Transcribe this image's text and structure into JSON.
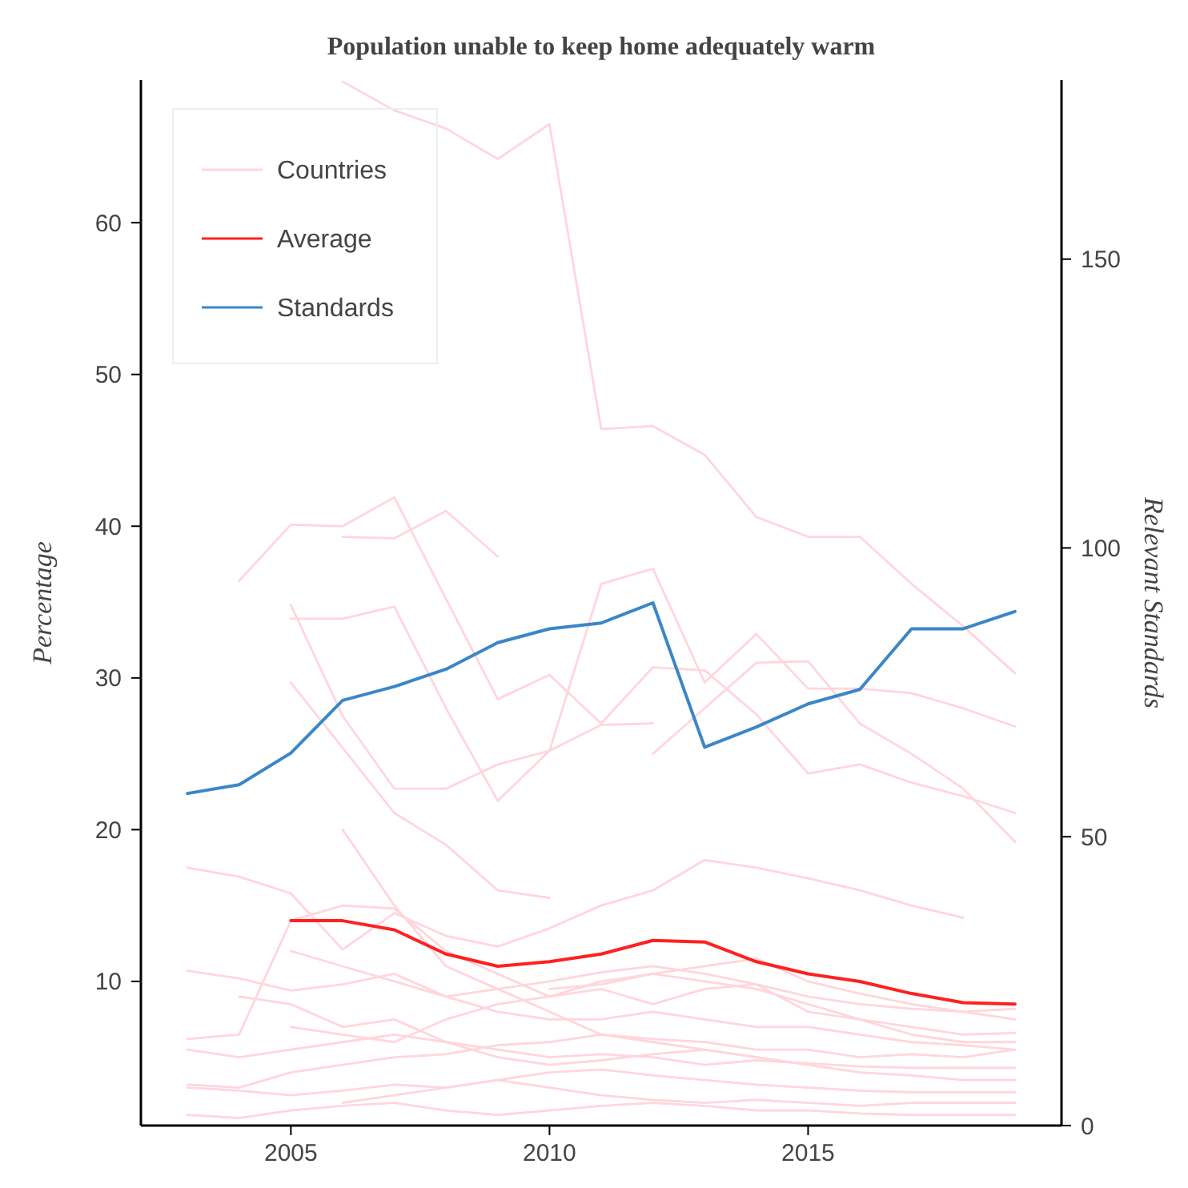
{
  "chart_data": {
    "type": "line",
    "title": "Population unable to keep home adequately warm",
    "ylabel": "Percentage",
    "y2label": "Relevant Standards",
    "xlim": [
      2002.1,
      2019.9
    ],
    "xticks": [
      2005,
      2010,
      2015
    ],
    "ylim": [
      0.5,
      69.4
    ],
    "yticks": [
      10,
      20,
      30,
      40,
      50,
      60
    ],
    "y2lim": [
      0,
      181
    ],
    "y2ticks": [
      0,
      50,
      100,
      150
    ],
    "legend": "top left",
    "grid": false,
    "series": [
      {
        "name": "Countries",
        "color": "#ffd6dc",
        "x": [
          2006,
          2007,
          2008,
          2009,
          2010,
          2011,
          2012,
          2013,
          2014,
          2015,
          2016,
          2017,
          2018,
          2019
        ],
        "values": [
          69.3,
          67.4,
          66.2,
          64.2,
          66.5,
          46.4,
          46.6,
          44.7,
          40.6,
          39.3,
          39.3,
          36.2,
          33.4,
          30.3
        ]
      },
      {
        "color": "#ffd6dc",
        "x": [
          2004,
          2005,
          2006,
          2007,
          2008,
          2009,
          2010,
          2011,
          2012,
          2013,
          2014,
          2015,
          2016
        ],
        "values": [
          36.4,
          40.1,
          40.0,
          41.9,
          35.2,
          28.6,
          30.2,
          27.0,
          30.7,
          30.5,
          27.6,
          23.7,
          24.3
        ]
      },
      {
        "color": "#ffd6dc",
        "x": [
          2006,
          2007,
          2008,
          2009
        ],
        "values": [
          39.3,
          39.2,
          41.0,
          38.0
        ]
      },
      {
        "color": "#ffd6dc",
        "x": [
          2005,
          2006,
          2007,
          2008,
          2009,
          2010,
          2011,
          2012,
          2013,
          2014,
          2015,
          2016,
          2017,
          2018,
          2019
        ],
        "values": [
          33.9,
          33.9,
          34.7,
          28.0,
          21.9,
          25.2,
          36.2,
          37.2,
          29.7,
          32.9,
          29.3,
          29.3,
          29.0,
          28.0,
          26.8
        ]
      },
      {
        "color": "#ffd6dc",
        "x": [
          2005,
          2006,
          2007,
          2008,
          2009,
          2010,
          2011,
          2012
        ],
        "values": [
          34.8,
          27.5,
          22.7,
          22.7,
          24.3,
          25.2,
          26.9,
          27.0
        ]
      },
      {
        "color": "#ffd6dc",
        "x": [
          2005,
          2006,
          2007,
          2008,
          2009,
          2010
        ],
        "values": [
          29.7,
          25.4,
          21.1,
          19.0,
          16.0,
          15.5
        ]
      },
      {
        "color": "#ffd6dc",
        "x": [
          2012,
          2013,
          2014,
          2015,
          2016,
          2017,
          2018,
          2019
        ],
        "values": [
          25.0,
          28.0,
          31.0,
          31.1,
          27.0,
          25.0,
          22.7,
          19.2
        ]
      },
      {
        "color": "#ffd6dc",
        "x": [
          2016,
          2017,
          2018,
          2019
        ],
        "values": [
          24.3,
          23.1,
          22.2,
          21.1
        ]
      },
      {
        "color": "#ffd6dc",
        "x": [
          2003,
          2004,
          2005,
          2006,
          2007,
          2008,
          2009,
          2010,
          2011,
          2012,
          2013,
          2014,
          2015,
          2016,
          2017,
          2018
        ],
        "values": [
          17.5,
          16.9,
          15.8,
          12.1,
          14.5,
          13.0,
          12.3,
          13.5,
          15.0,
          16.0,
          18.0,
          17.5,
          16.8,
          16.0,
          15.0,
          14.2
        ]
      },
      {
        "color": "#ffd6dc",
        "x": [
          2003,
          2004,
          2005,
          2006,
          2007,
          2008,
          2009,
          2010,
          2011,
          2012,
          2013,
          2014,
          2015,
          2016,
          2017,
          2018,
          2019
        ],
        "values": [
          10.7,
          10.2,
          9.4,
          9.8,
          10.5,
          9.0,
          9.5,
          10.0,
          10.6,
          11.0,
          10.5,
          9.8,
          9.0,
          8.5,
          8.2,
          8.0,
          8.2
        ]
      },
      {
        "color": "#ffd6dc",
        "x": [
          2003,
          2004,
          2005,
          2006,
          2007,
          2008,
          2009,
          2010,
          2011,
          2012,
          2013,
          2014,
          2015,
          2016,
          2017,
          2018,
          2019
        ],
        "values": [
          6.2,
          6.5,
          14.0,
          15.0,
          14.8,
          12.0,
          10.5,
          9.0,
          9.5,
          8.5,
          9.5,
          9.8,
          8.0,
          7.5,
          7.0,
          6.5,
          6.6
        ]
      },
      {
        "color": "#ffd6dc",
        "x": [
          2003,
          2004,
          2005,
          2006,
          2007,
          2008,
          2009,
          2010,
          2011,
          2012,
          2013,
          2014,
          2015,
          2016,
          2017,
          2018,
          2019
        ],
        "values": [
          3.2,
          3.0,
          4.0,
          4.5,
          5.0,
          5.2,
          5.8,
          6.0,
          6.5,
          6.2,
          6.0,
          5.5,
          5.5,
          5.0,
          5.2,
          5.0,
          5.5
        ]
      },
      {
        "color": "#ffd6dc",
        "x": [
          2003,
          2004,
          2005,
          2006,
          2007,
          2008,
          2009,
          2010,
          2011,
          2012,
          2013,
          2014,
          2015,
          2016,
          2017,
          2018,
          2019
        ],
        "values": [
          1.2,
          1.0,
          1.5,
          1.8,
          2.0,
          1.5,
          1.2,
          1.5,
          1.8,
          2.0,
          1.8,
          1.5,
          1.5,
          1.3,
          1.2,
          1.2,
          1.2
        ]
      },
      {
        "color": "#ffd6dc",
        "x": [
          2003,
          2004,
          2005,
          2006,
          2007,
          2008,
          2009,
          2010,
          2011,
          2012,
          2013,
          2014,
          2015,
          2016,
          2017,
          2018,
          2019
        ],
        "values": [
          3.0,
          2.8,
          2.5,
          2.8,
          3.2,
          3.0,
          3.5,
          4.0,
          4.2,
          3.8,
          3.5,
          3.2,
          3.0,
          2.8,
          2.7,
          2.7,
          2.7
        ]
      },
      {
        "color": "#ffd6dc",
        "x": [
          2004,
          2005,
          2006,
          2007,
          2008,
          2009,
          2010,
          2011,
          2012,
          2013,
          2014,
          2015,
          2016,
          2017,
          2018,
          2019
        ],
        "values": [
          9.0,
          8.5,
          7.0,
          7.5,
          6.0,
          5.5,
          5.0,
          5.2,
          5.0,
          4.5,
          4.8,
          4.6,
          4.4,
          4.3,
          4.3,
          4.3
        ]
      },
      {
        "color": "#ffd6dc",
        "x": [
          2005,
          2006,
          2007,
          2008,
          2009,
          2010,
          2011,
          2012,
          2013,
          2014,
          2015,
          2016,
          2017,
          2018,
          2019
        ],
        "values": [
          7.0,
          6.5,
          6.0,
          7.5,
          8.5,
          9.0,
          10.0,
          10.5,
          10.0,
          9.5,
          8.5,
          7.5,
          6.5,
          6.0,
          6.0
        ]
      },
      {
        "color": "#ffd6dc",
        "x": [
          2006,
          2007,
          2008,
          2009,
          2010,
          2011,
          2012,
          2013,
          2014,
          2015,
          2016,
          2017,
          2018,
          2019
        ],
        "values": [
          2.0,
          2.5,
          3.0,
          3.5,
          3.0,
          2.5,
          2.2,
          2.0,
          2.2,
          2.0,
          1.8,
          2.0,
          2.0,
          2.0
        ]
      },
      {
        "color": "#ffd6dc",
        "x": [
          2010,
          2011,
          2012,
          2013,
          2014,
          2015,
          2016,
          2017,
          2018,
          2019
        ],
        "values": [
          9.5,
          9.8,
          10.5,
          11.0,
          11.5,
          10.0,
          9.2,
          8.5,
          8.0,
          7.5
        ]
      },
      {
        "color": "#ffd6dc",
        "x": [
          2005,
          2006,
          2007,
          2008,
          2009,
          2010,
          2011,
          2012,
          2013,
          2014,
          2015,
          2016,
          2017,
          2018,
          2019
        ],
        "values": [
          12.0,
          11.0,
          10.0,
          9.0,
          8.0,
          7.5,
          7.5,
          8.0,
          7.5,
          7.0,
          7.0,
          6.5,
          6.0,
          5.8,
          5.5
        ]
      },
      {
        "color": "#ffd6dc",
        "x": [
          2003,
          2004,
          2005,
          2006,
          2007,
          2008,
          2009,
          2010,
          2011,
          2012,
          2013,
          2014,
          2015,
          2016,
          2017,
          2018,
          2019
        ],
        "values": [
          5.5,
          5.0,
          5.5,
          6.0,
          6.5,
          6.0,
          5.0,
          4.5,
          4.8,
          5.2,
          5.5,
          5.0,
          4.5,
          4.0,
          3.8,
          3.5,
          3.5
        ]
      },
      {
        "color": "#ffd6dc",
        "x": [
          2006,
          2007,
          2008,
          2009,
          2010,
          2011,
          2012,
          2013,
          2014,
          2015
        ],
        "values": [
          20.0,
          15.0,
          11.0,
          9.5,
          8.0,
          6.5,
          6.0,
          5.5,
          5.0,
          4.5
        ]
      },
      {
        "name": "Average",
        "color": "#ff2020",
        "x": [
          2005,
          2006,
          2007,
          2008,
          2009,
          2010,
          2011,
          2012,
          2013,
          2014,
          2015,
          2016,
          2017,
          2018,
          2019
        ],
        "values": [
          14.0,
          14.0,
          13.4,
          11.8,
          11.0,
          11.3,
          11.8,
          12.7,
          12.6,
          11.3,
          10.5,
          10.0,
          9.2,
          8.6,
          8.5
        ]
      },
      {
        "name": "Standards",
        "color": "#3a86c8",
        "axis": "y2",
        "x": [
          2003,
          2004,
          2005,
          2006,
          2007,
          2008,
          2009,
          2010,
          2011,
          2012,
          2013,
          2014,
          2015,
          2016,
          2017,
          2018,
          2019
        ],
        "values": [
          57.5,
          59,
          64.5,
          73.6,
          76,
          79,
          83.6,
          86,
          87,
          90.5,
          65.5,
          69,
          73,
          75.5,
          86,
          86,
          89
        ]
      }
    ]
  }
}
